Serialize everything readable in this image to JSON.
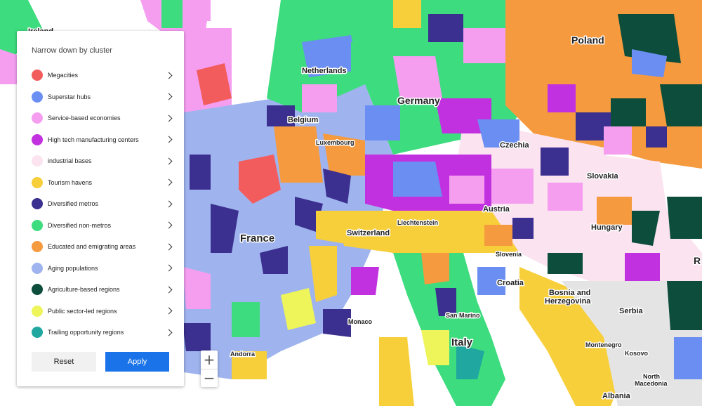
{
  "panel": {
    "title": "Narrow down by cluster",
    "clusters": [
      {
        "label": "Megacities",
        "color": "#f25c5c"
      },
      {
        "label": "Superstar hubs",
        "color": "#6b8ef2"
      },
      {
        "label": "Service-based economies",
        "color": "#f59ef0"
      },
      {
        "label": "High tech manufacturing centers",
        "color": "#c231e0"
      },
      {
        "label": "industrial bases",
        "color": "#fbe3f0"
      },
      {
        "label": "Tourism havens",
        "color": "#f7cf3b"
      },
      {
        "label": "Diversified metros",
        "color": "#3b2f8f"
      },
      {
        "label": "Diversified non-metros",
        "color": "#3ddc7e"
      },
      {
        "label": "Educated and emigrating areas",
        "color": "#f59a3e"
      },
      {
        "label": "Aging populations",
        "color": "#9fb4ee"
      },
      {
        "label": "Agriculture-based regions",
        "color": "#0d4d3c"
      },
      {
        "label": "Public sector-led regions",
        "color": "#edf55a"
      },
      {
        "label": "Trailing opportunity regions",
        "color": "#1fa7a0"
      }
    ],
    "reset_label": "Reset",
    "apply_label": "Apply"
  },
  "map_labels": {
    "ireland": "Ireland",
    "netherlands": "Netherlands",
    "belgium": "Belgium",
    "luxembourg": "Luxembourg",
    "germany": "Germany",
    "poland": "Poland",
    "czechia": "Czechia",
    "slovakia": "Slovakia",
    "austria": "Austria",
    "liechtenstein": "Liechtenstein",
    "switzerland": "Switzerland",
    "france": "France",
    "hungary": "Hungary",
    "slovenia": "Slovenia",
    "croatia": "Croatia",
    "bosnia_line1": "Bosnia and",
    "bosnia_line2": "Herzegovina",
    "serbia": "Serbia",
    "san_marino": "San Marino",
    "monaco": "Monaco",
    "italy": "Italy",
    "andorra": "Andorra",
    "montenegro": "Montenegro",
    "kosovo": "Kosovo",
    "north_macedonia_line1": "North",
    "north_macedonia_line2": "Macedonia",
    "albania": "Albania",
    "romania_partial": "R"
  },
  "zoom": {
    "in_symbol": "+",
    "out_symbol": "−"
  }
}
